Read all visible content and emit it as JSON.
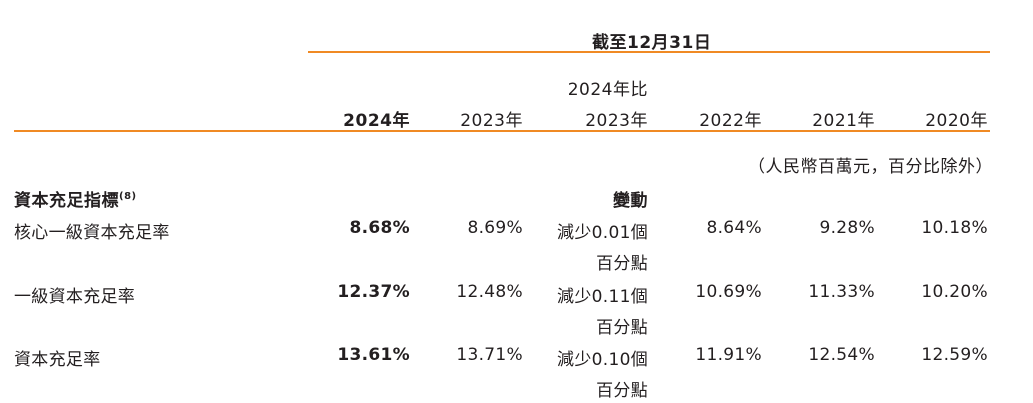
{
  "table": {
    "period_header": "截至12月31日",
    "change_header_line1": "2024年比",
    "change_header_line2": "2023年",
    "columns": [
      "2024年",
      "2023年",
      "2022年",
      "2021年",
      "2020年"
    ],
    "unit_note": "（人民幣百萬元，百分比除外）",
    "section_title": "資本充足指標",
    "section_note": "(8)",
    "change_label": "變動",
    "rows": [
      {
        "label": "核心一級資本充足率",
        "v2024": "8.68%",
        "v2023": "8.69%",
        "change_line1": "減少0.01個",
        "change_line2": "百分點",
        "v2022": "8.64%",
        "v2021": "9.28%",
        "v2020": "10.18%"
      },
      {
        "label": "一級資本充足率",
        "v2024": "12.37%",
        "v2023": "12.48%",
        "change_line1": "減少0.11個",
        "change_line2": "百分點",
        "v2022": "10.69%",
        "v2021": "11.33%",
        "v2020": "10.20%"
      },
      {
        "label": "資本充足率",
        "v2024": "13.61%",
        "v2023": "13.71%",
        "change_line1": "減少0.10個",
        "change_line2": "百分點",
        "v2022": "11.91%",
        "v2021": "12.54%",
        "v2020": "12.59%"
      }
    ]
  },
  "colors": {
    "rule": "#f08a24",
    "text": "#231f20"
  }
}
